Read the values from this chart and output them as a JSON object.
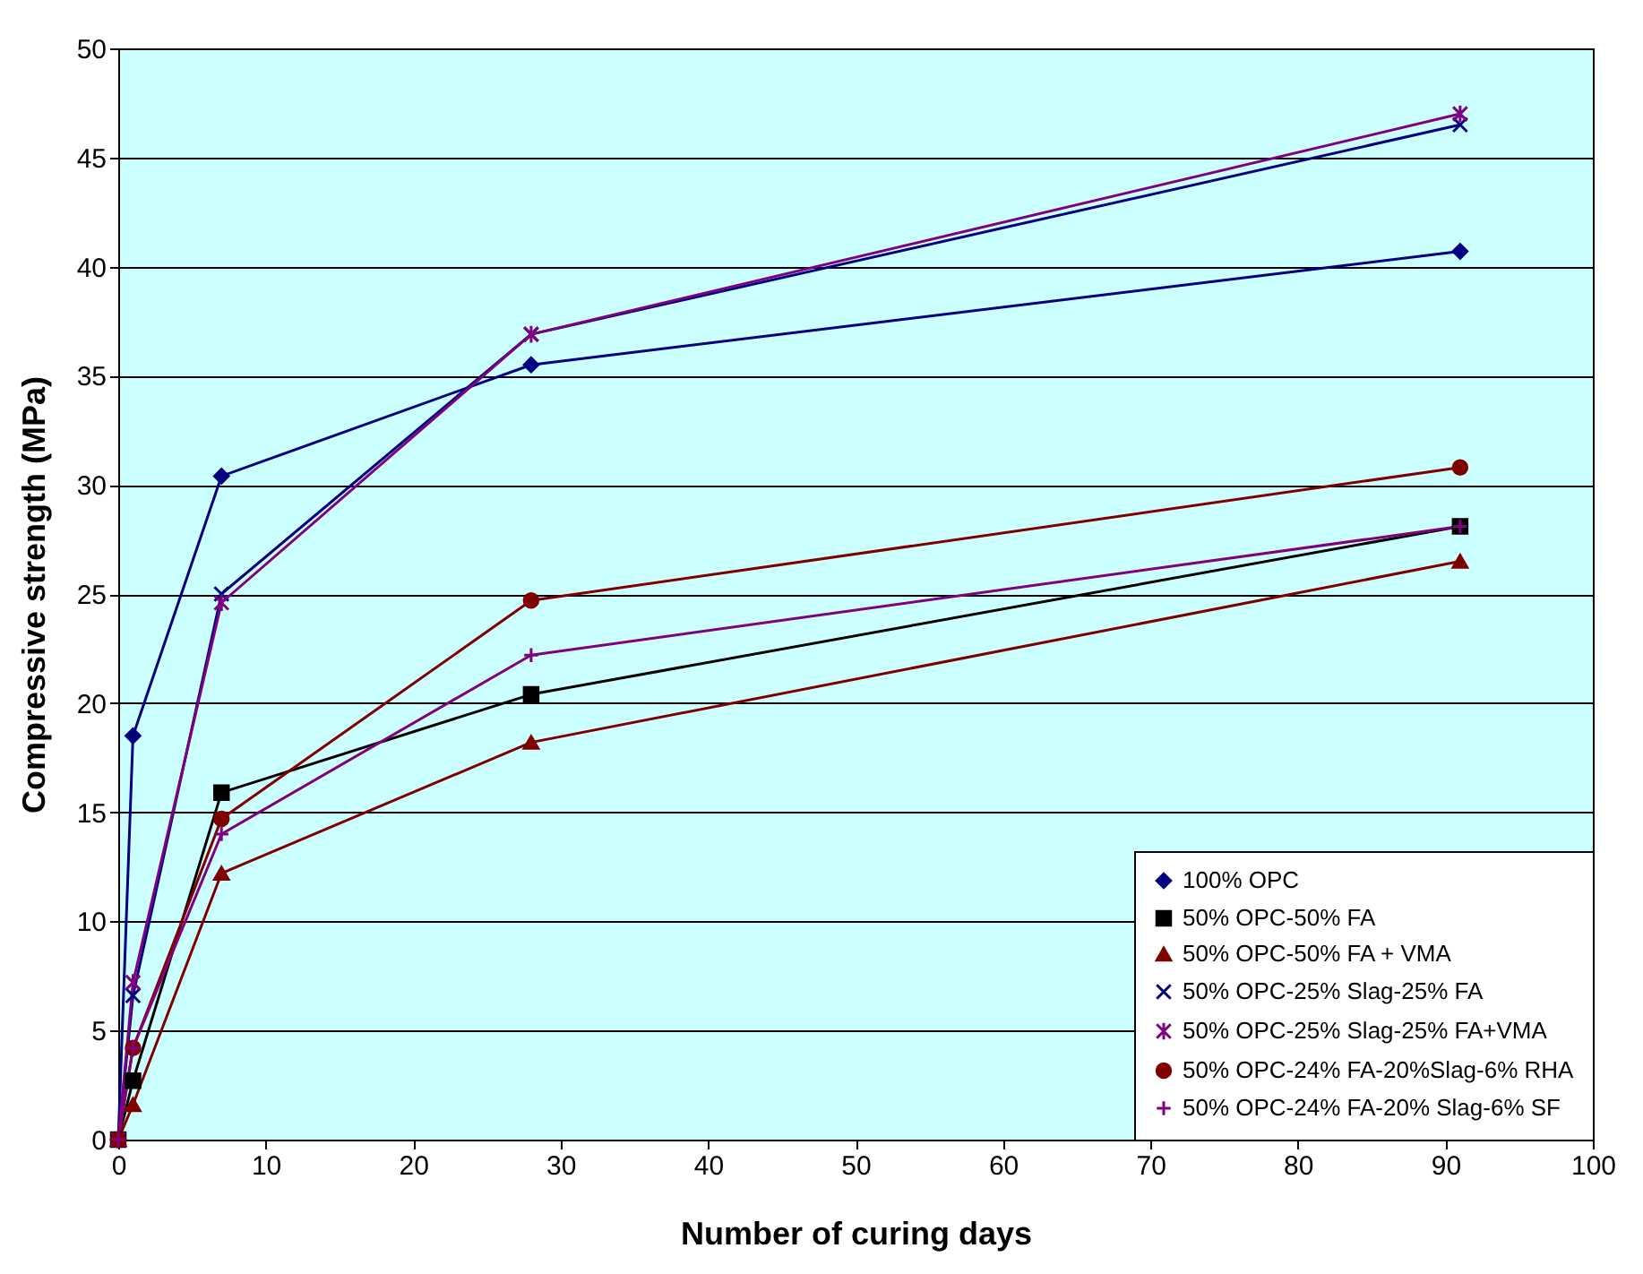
{
  "chart_data": {
    "type": "line",
    "xlabel": "Number of curing days",
    "ylabel": "Compressive strength (MPa)",
    "x": [
      0,
      1,
      7,
      28,
      91
    ],
    "series": [
      {
        "name": "100% OPC",
        "color": "#000080",
        "marker": "diamond",
        "values": [
          0,
          18.5,
          30.4,
          35.5,
          40.7
        ]
      },
      {
        "name": "50% OPC-50% FA",
        "color": "#000000",
        "marker": "square",
        "values": [
          0,
          2.7,
          15.9,
          20.4,
          28.1
        ]
      },
      {
        "name": "50% OPC-50% FA + VMA",
        "color": "#800000",
        "marker": "triangle",
        "values": [
          0,
          1.6,
          12.2,
          18.2,
          26.5
        ]
      },
      {
        "name": "50% OPC-25% Slag-25% FA",
        "color": "#000080",
        "marker": "x",
        "values": [
          0,
          6.6,
          25.0,
          36.9,
          46.5
        ]
      },
      {
        "name": "50% OPC-25% Slag-25% FA+VMA",
        "color": "#800080",
        "marker": "cross",
        "values": [
          0,
          7.2,
          24.6,
          36.9,
          47.0
        ]
      },
      {
        "name": "50% OPC-24% FA-20%Slag-6% RHA",
        "color": "#800000",
        "marker": "circle",
        "values": [
          0,
          4.2,
          14.7,
          24.7,
          30.8
        ]
      },
      {
        "name": "50% OPC-24% FA-20% Slag-6% SF",
        "color": "#800080",
        "marker": "plus",
        "values": [
          0,
          4.2,
          14.0,
          22.2,
          28.1
        ]
      }
    ],
    "xlim": [
      0,
      100
    ],
    "xticks": [
      0,
      10,
      20,
      30,
      40,
      50,
      60,
      70,
      80,
      90,
      100
    ],
    "ylim": [
      0,
      50
    ],
    "yticks": [
      0,
      5,
      10,
      15,
      20,
      25,
      30,
      35,
      40,
      45,
      50
    ],
    "grid": "y",
    "legend": "bottom right",
    "line_style": "solid"
  }
}
